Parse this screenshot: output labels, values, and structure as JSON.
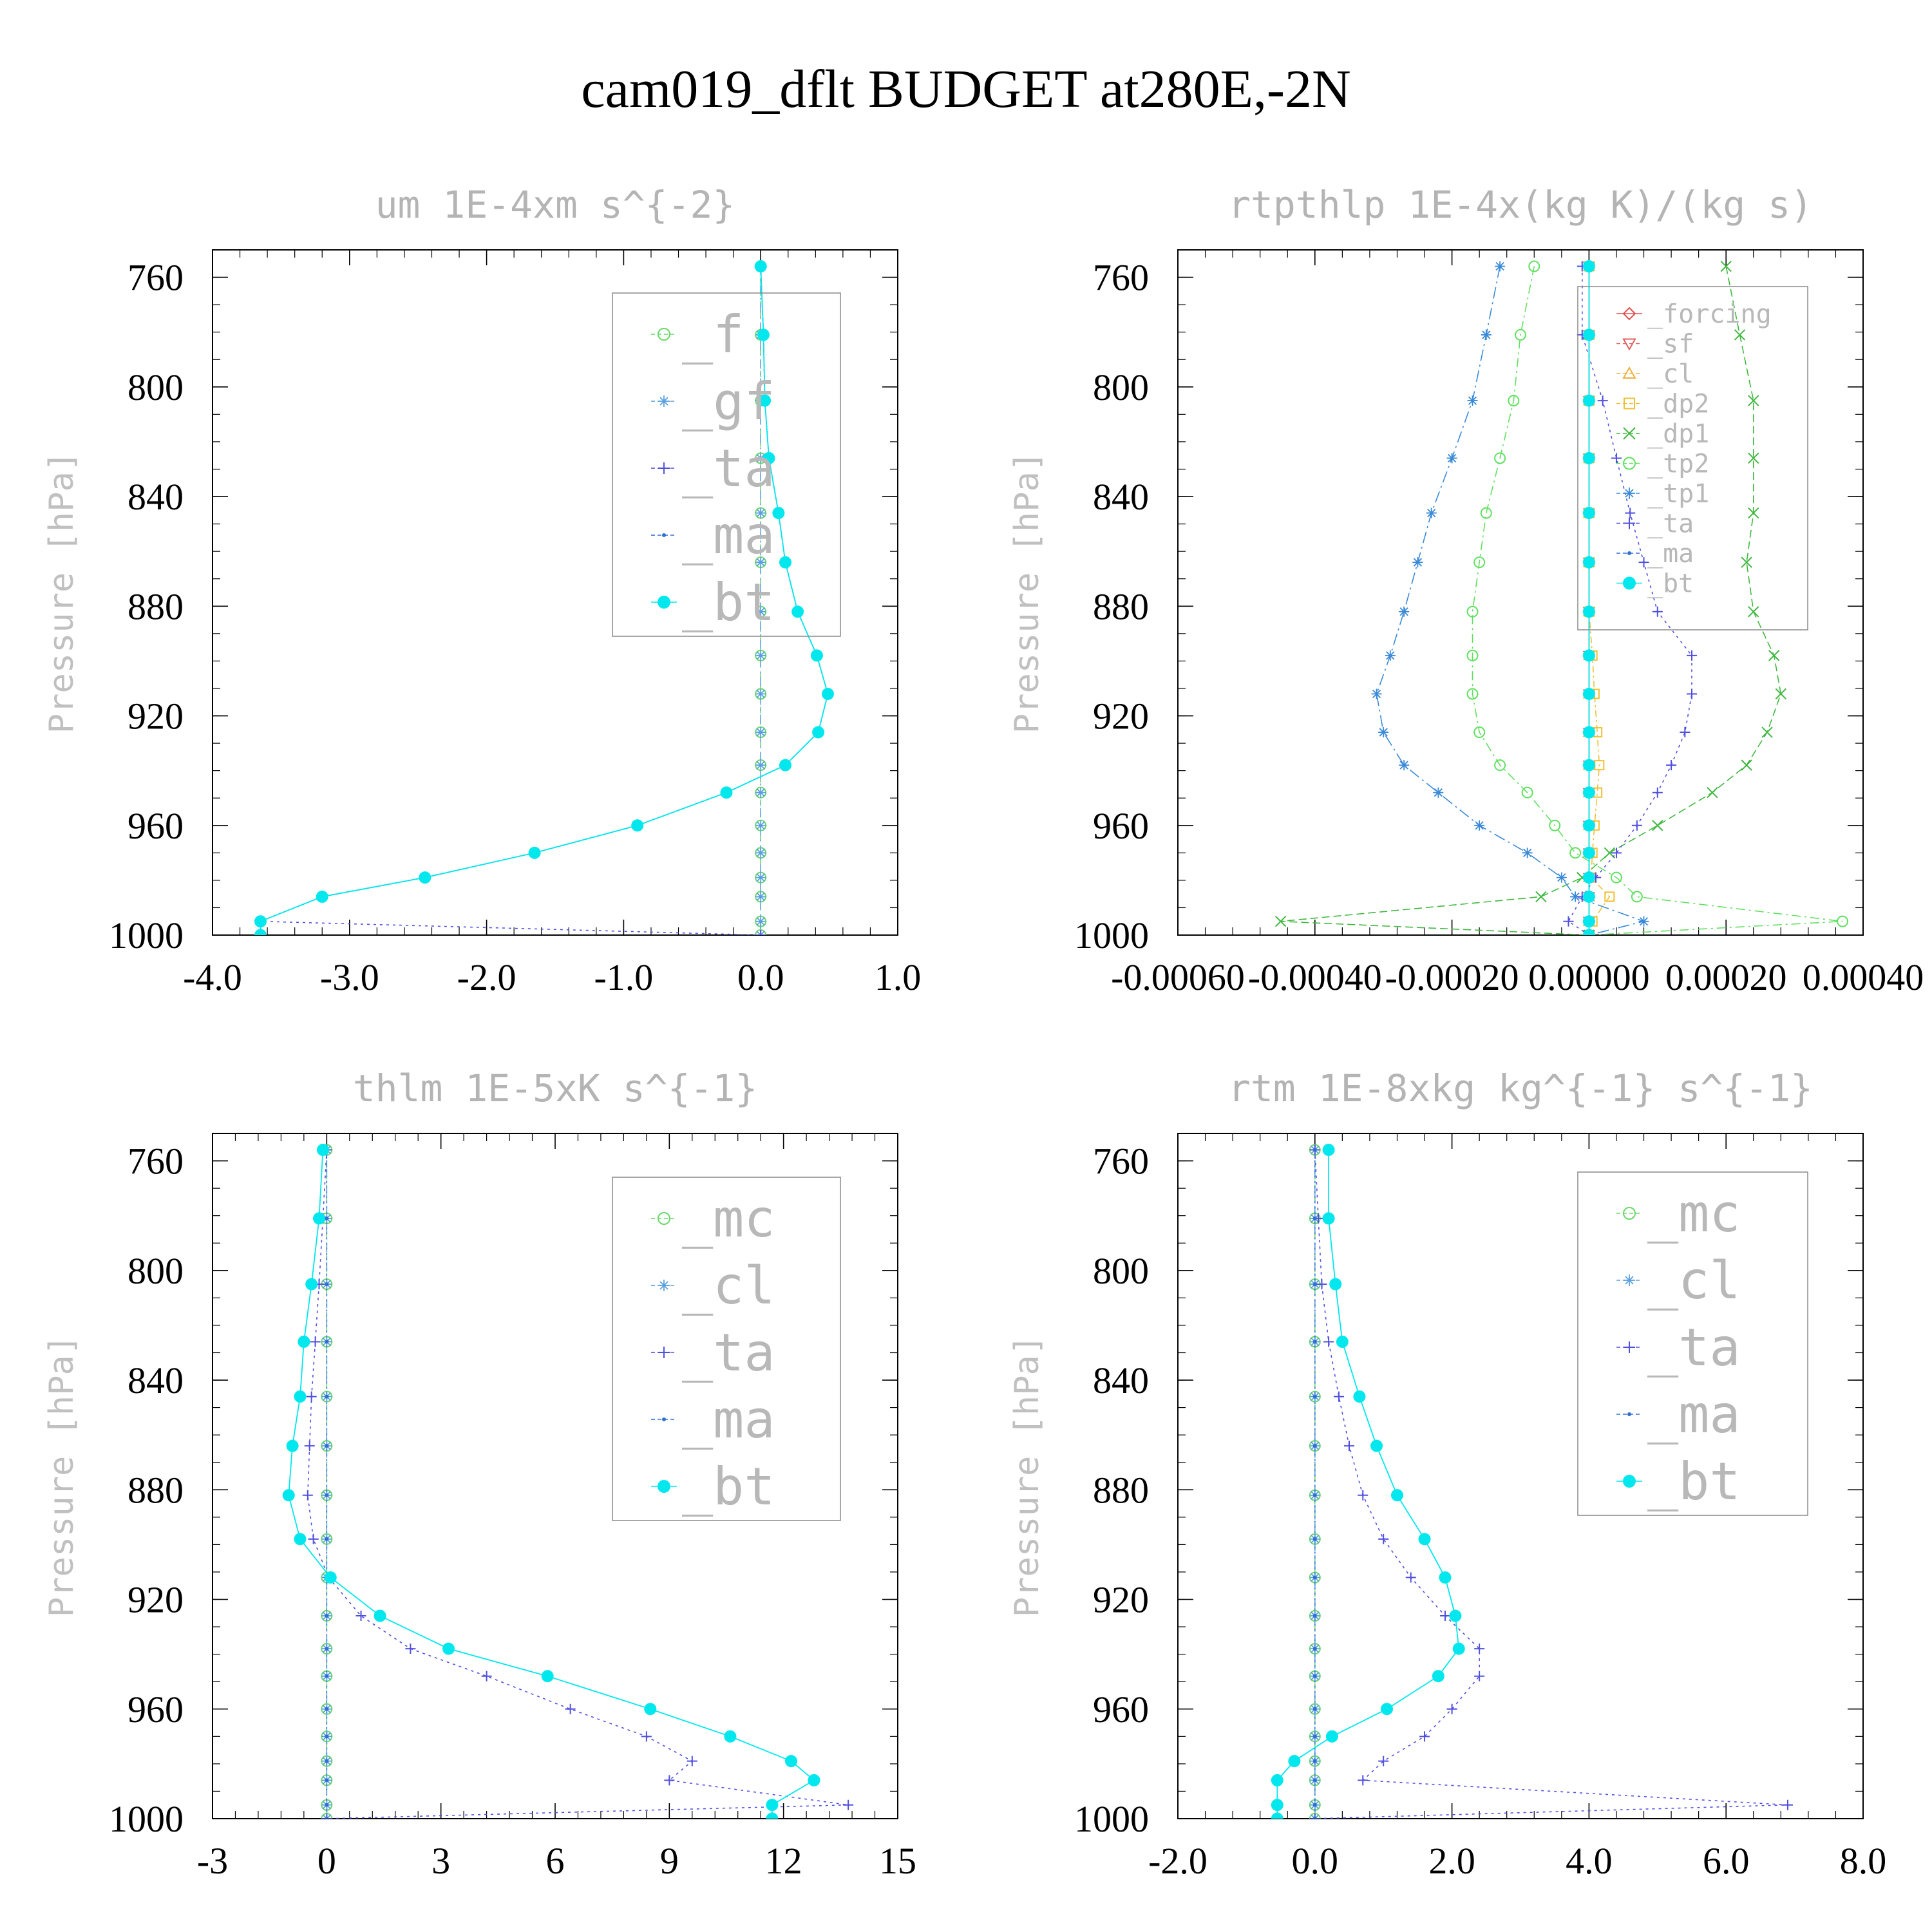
{
  "title": "cam019_dflt  BUDGET at280E,-2N",
  "chart_data": [
    {
      "type": "line",
      "title": "um  1E-4xm s^{-2}",
      "ylabel": "Pressure [hPa]",
      "xlim": [
        -4.0,
        1.0
      ],
      "ylim": [
        1000,
        750
      ],
      "xticks": [
        "-4.0",
        "-3.0",
        "-2.0",
        "-1.0",
        "0.0",
        "1.0"
      ],
      "xtick_values": [
        -4,
        -3,
        -2,
        -1,
        0,
        1
      ],
      "yticks": [
        "760",
        "800",
        "840",
        "880",
        "920",
        "960",
        "1000"
      ],
      "ytick_values": [
        760,
        800,
        840,
        880,
        920,
        960,
        1000
      ],
      "legend_position": "top-right",
      "pressure": [
        756,
        781,
        805,
        826,
        846,
        864,
        882,
        898,
        912,
        926,
        938,
        948,
        960,
        970,
        979,
        986,
        995,
        1000
      ],
      "series": [
        {
          "name": "_f",
          "color": "#6ad86a",
          "marker": "circle-open",
          "dash": "10,8",
          "values": [
            0,
            0,
            0,
            0,
            0,
            0,
            0,
            0,
            0,
            0,
            0,
            0,
            0,
            0,
            0,
            0,
            0,
            0
          ]
        },
        {
          "name": "_gf",
          "color": "#5aa0e0",
          "marker": "star",
          "dash": "14,6,3,6",
          "values": [
            0,
            0,
            0,
            0,
            0,
            0,
            0,
            0,
            0,
            0,
            0,
            0,
            0,
            0,
            0,
            0,
            0,
            0
          ]
        },
        {
          "name": "_ta",
          "color": "#5050e0",
          "marker": "plus",
          "dash": "4,6",
          "values": [
            0.0,
            0.02,
            0.03,
            0.06,
            0.13,
            0.18,
            0.27,
            0.41,
            0.49,
            0.42,
            0.18,
            -0.25,
            -0.9,
            -1.65,
            -2.45,
            -3.2,
            -3.65,
            0.0
          ]
        },
        {
          "name": "_ma",
          "color": "#3070d0",
          "marker": "dot",
          "dash": "3,5",
          "values": [
            0.0,
            0.02,
            0.03,
            0.06,
            0.13,
            0.18,
            0.27,
            0.41,
            0.49,
            0.42,
            0.18,
            -0.25,
            -0.9,
            -1.65,
            -2.45,
            -3.2,
            -3.65,
            -3.65
          ]
        },
        {
          "name": "_bt",
          "color": "#00e8ee",
          "marker": "filled-circle",
          "dash": "",
          "values": [
            0.0,
            0.02,
            0.03,
            0.06,
            0.13,
            0.18,
            0.27,
            0.41,
            0.49,
            0.42,
            0.18,
            -0.25,
            -0.9,
            -1.65,
            -2.45,
            -3.2,
            -3.65,
            -3.65
          ]
        }
      ]
    },
    {
      "type": "line",
      "title": "rtpthlp  1E-4x(kg K)/(kg s)",
      "ylabel": "Pressure [hPa]",
      "xlim": [
        -0.0006,
        0.0004
      ],
      "ylim": [
        1000,
        750
      ],
      "xticks": [
        "-0.00060",
        "-0.00040",
        "-0.00020",
        "0.00000",
        "0.00020",
        "0.00040"
      ],
      "xtick_values": [
        -0.0006,
        -0.0004,
        -0.0002,
        0.0,
        0.0002,
        0.0004
      ],
      "yticks": [
        "760",
        "800",
        "840",
        "880",
        "920",
        "960",
        "1000"
      ],
      "ytick_values": [
        760,
        800,
        840,
        880,
        920,
        960,
        1000
      ],
      "legend_position": "top-right",
      "pressure": [
        756,
        781,
        805,
        826,
        846,
        864,
        882,
        898,
        912,
        926,
        938,
        948,
        960,
        970,
        979,
        986,
        995,
        1000
      ],
      "series": [
        {
          "name": "_forcing",
          "color": "#e05050",
          "marker": "diamond-open",
          "dash": "",
          "values": [
            0,
            0,
            0,
            0,
            0,
            0,
            0,
            0,
            0,
            0,
            0,
            0,
            0,
            0,
            0,
            0,
            0,
            0
          ]
        },
        {
          "name": "_sf",
          "color": "#e06060",
          "marker": "triangle-down",
          "dash": "10,6",
          "values": [
            0,
            0,
            0,
            0,
            0,
            0,
            0,
            0,
            0,
            0,
            0,
            0,
            0,
            0,
            0,
            0,
            0,
            0
          ]
        },
        {
          "name": "_cl",
          "color": "#f0b040",
          "marker": "triangle-up",
          "dash": "4,5",
          "values": [
            0,
            0,
            0,
            0,
            0,
            0,
            0,
            0,
            0,
            0,
            0,
            0,
            0,
            0,
            0,
            0,
            0,
            0
          ]
        },
        {
          "name": "_dp2",
          "color": "#f0c030",
          "marker": "square-open",
          "dash": "10,5,3,5",
          "values": [
            0,
            0,
            0,
            0,
            0,
            0,
            0,
            5e-06,
            8e-06,
            1.2e-05,
            1.5e-05,
            1.2e-05,
            8e-06,
            5e-06,
            3e-06,
            3e-05,
            5e-06,
            0
          ]
        },
        {
          "name": "_dp1",
          "color": "#40b840",
          "marker": "x",
          "dash": "12,6",
          "values": [
            0.0002,
            0.00022,
            0.00024,
            0.00024,
            0.00024,
            0.00023,
            0.00024,
            0.00027,
            0.00028,
            0.00026,
            0.00023,
            0.00018,
            0.0001,
            3e-05,
            -1e-05,
            -7e-05,
            -0.00045,
            0
          ]
        },
        {
          "name": "_tp2",
          "color": "#60e060",
          "marker": "circle-open",
          "dash": "14,6,3,6",
          "values": [
            -8e-05,
            -0.0001,
            -0.00011,
            -0.00013,
            -0.00015,
            -0.00016,
            -0.00017,
            -0.00017,
            -0.00017,
            -0.00016,
            -0.00013,
            -9e-05,
            -5e-05,
            -2e-05,
            4e-05,
            7e-05,
            0.00037,
            0
          ]
        },
        {
          "name": "_tp1",
          "color": "#3a8ad8",
          "marker": "star",
          "dash": "18,6,3,6",
          "values": [
            -0.00013,
            -0.00015,
            -0.00017,
            -0.0002,
            -0.00023,
            -0.00025,
            -0.00027,
            -0.00029,
            -0.00031,
            -0.0003,
            -0.00027,
            -0.00022,
            -0.00016,
            -9e-05,
            -4e-05,
            -2e-05,
            8e-05,
            0
          ]
        },
        {
          "name": "_ta",
          "color": "#5050e0",
          "marker": "plus",
          "dash": "4,6",
          "values": [
            -1e-05,
            -1e-05,
            2e-05,
            4e-05,
            6e-05,
            8e-05,
            0.0001,
            0.00015,
            0.00015,
            0.00014,
            0.00012,
            0.0001,
            7e-05,
            4e-05,
            1e-05,
            -1e-05,
            -3e-05,
            0
          ]
        },
        {
          "name": "_ma",
          "color": "#3070d0",
          "marker": "dot",
          "dash": "3,5",
          "values": [
            0,
            0,
            0,
            0,
            0,
            0,
            0,
            0,
            0,
            0,
            0,
            0,
            0,
            0,
            0,
            0,
            0,
            0
          ]
        },
        {
          "name": "_bt",
          "color": "#00e8ee",
          "marker": "filled-circle",
          "dash": "",
          "values": [
            0,
            0,
            0,
            0,
            0,
            0,
            0,
            0,
            0,
            0,
            0,
            0,
            0,
            0,
            0,
            0,
            0,
            0
          ]
        }
      ]
    },
    {
      "type": "line",
      "title": "thlm  1E-5xK s^{-1}",
      "ylabel": "Pressure [hPa]",
      "xlim": [
        -3,
        15
      ],
      "ylim": [
        1000,
        750
      ],
      "xticks": [
        "-3",
        "0",
        "3",
        "6",
        "9",
        "12",
        "15"
      ],
      "xtick_values": [
        -3,
        0,
        3,
        6,
        9,
        12,
        15
      ],
      "yticks": [
        "760",
        "800",
        "840",
        "880",
        "920",
        "960",
        "1000"
      ],
      "ytick_values": [
        760,
        800,
        840,
        880,
        920,
        960,
        1000
      ],
      "legend_position": "top-right",
      "pressure": [
        756,
        781,
        805,
        826,
        846,
        864,
        882,
        898,
        912,
        926,
        938,
        948,
        960,
        970,
        979,
        986,
        995,
        1000
      ],
      "series": [
        {
          "name": "_mc",
          "color": "#6ad86a",
          "marker": "circle-open",
          "dash": "10,8",
          "values": [
            0,
            0,
            0,
            0,
            0,
            0,
            0,
            0,
            0,
            0,
            0,
            0,
            0,
            0,
            0,
            0,
            0,
            0
          ]
        },
        {
          "name": "_cl",
          "color": "#5aa0e0",
          "marker": "star",
          "dash": "14,6,3,6",
          "values": [
            0,
            0,
            0,
            0,
            0,
            0,
            0,
            0,
            0,
            0,
            0,
            0,
            0,
            0,
            0,
            0,
            0,
            0
          ]
        },
        {
          "name": "_ta",
          "color": "#5050e0",
          "marker": "plus",
          "dash": "4,6",
          "values": [
            0.0,
            -0.1,
            -0.2,
            -0.3,
            -0.4,
            -0.45,
            -0.5,
            -0.35,
            0.05,
            0.9,
            2.2,
            4.2,
            6.4,
            8.4,
            9.6,
            9.0,
            13.7,
            0.0
          ]
        },
        {
          "name": "_ma",
          "color": "#3070d0",
          "marker": "dot",
          "dash": "3,5",
          "values": [
            0,
            0,
            0,
            0,
            0,
            0,
            0,
            0,
            0,
            0,
            0,
            0,
            0,
            0,
            0,
            0,
            0,
            0
          ]
        },
        {
          "name": "_bt",
          "color": "#00e8ee",
          "marker": "filled-circle",
          "dash": "",
          "values": [
            -0.1,
            -0.2,
            -0.4,
            -0.6,
            -0.7,
            -0.9,
            -1.0,
            -0.7,
            0.1,
            1.4,
            3.2,
            5.8,
            8.5,
            10.6,
            12.2,
            12.8,
            11.7,
            11.7
          ]
        }
      ]
    },
    {
      "type": "line",
      "title": "rtm  1E-8xkg kg^{-1} s^{-1}",
      "ylabel": "Pressure [hPa]",
      "xlim": [
        -2.0,
        8.0
      ],
      "ylim": [
        1000,
        750
      ],
      "xticks": [
        "-2.0",
        "0.0",
        "2.0",
        "4.0",
        "6.0",
        "8.0"
      ],
      "xtick_values": [
        -2,
        0,
        2,
        4,
        6,
        8
      ],
      "yticks": [
        "760",
        "800",
        "840",
        "880",
        "920",
        "960",
        "1000"
      ],
      "ytick_values": [
        760,
        800,
        840,
        880,
        920,
        960,
        1000
      ],
      "legend_position": "top-right",
      "pressure": [
        756,
        781,
        805,
        826,
        846,
        864,
        882,
        898,
        912,
        926,
        938,
        948,
        960,
        970,
        979,
        986,
        995,
        1000
      ],
      "series": [
        {
          "name": "_mc",
          "color": "#6ad86a",
          "marker": "circle-open",
          "dash": "10,8",
          "values": [
            0,
            0,
            0,
            0,
            0,
            0,
            0,
            0,
            0,
            0,
            0,
            0,
            0,
            0,
            0,
            0,
            0,
            0
          ]
        },
        {
          "name": "_cl",
          "color": "#5aa0e0",
          "marker": "star",
          "dash": "14,6,3,6",
          "values": [
            0,
            0,
            0,
            0,
            0,
            0,
            0,
            0,
            0,
            0,
            0,
            0,
            0,
            0,
            0,
            0,
            0,
            0
          ]
        },
        {
          "name": "_ta",
          "color": "#5050e0",
          "marker": "plus",
          "dash": "4,6",
          "values": [
            0.0,
            0.05,
            0.1,
            0.2,
            0.35,
            0.5,
            0.7,
            1.0,
            1.4,
            1.9,
            2.4,
            2.4,
            2.0,
            1.6,
            1.0,
            0.7,
            6.9,
            0.0
          ]
        },
        {
          "name": "_ma",
          "color": "#3070d0",
          "marker": "dot",
          "dash": "3,5",
          "values": [
            0,
            0,
            0,
            0,
            0,
            0,
            0,
            0,
            0,
            0,
            0,
            0,
            0,
            0,
            0,
            0,
            0,
            0
          ]
        },
        {
          "name": "_bt",
          "color": "#00e8ee",
          "marker": "filled-circle",
          "dash": "",
          "values": [
            0.2,
            0.2,
            0.3,
            0.4,
            0.65,
            0.9,
            1.2,
            1.6,
            1.9,
            2.05,
            2.1,
            1.8,
            1.05,
            0.25,
            -0.3,
            -0.55,
            -0.55,
            -0.55
          ]
        }
      ]
    }
  ]
}
